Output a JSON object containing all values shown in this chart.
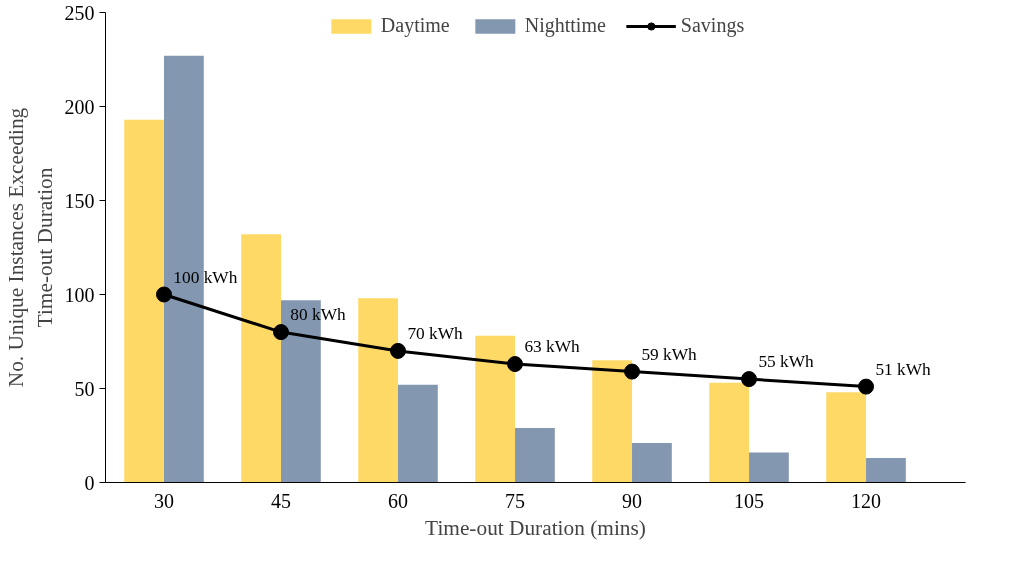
{
  "chart_data": {
    "type": "bar",
    "xlabel": "Time-out Duration (mins)",
    "ylabel": "No. Unique Instances Exceeding Time-out Duration",
    "categories": [
      "30",
      "45",
      "60",
      "75",
      "90",
      "105",
      "120"
    ],
    "series": [
      {
        "name": "Daytime",
        "color": "#ffd966",
        "values": [
          193,
          132,
          98,
          78,
          65,
          53,
          48
        ]
      },
      {
        "name": "Nighttime",
        "color": "#8497b0",
        "values": [
          227,
          97,
          52,
          29,
          21,
          16,
          13
        ]
      },
      {
        "name": "Savings",
        "type": "line",
        "color": "#000000",
        "marker": "circle",
        "values": [
          100,
          80,
          70,
          63,
          59,
          55,
          51
        ],
        "value_labels": [
          "100 kWh",
          "80 kWh",
          "70 kWh",
          "63 kWh",
          "59 kWh",
          "55 kWh",
          "51 kWh"
        ]
      }
    ],
    "ylim": [
      0,
      250
    ],
    "yticks": [
      0,
      50,
      100,
      150,
      200,
      250
    ],
    "grid": false,
    "legend": "top"
  }
}
